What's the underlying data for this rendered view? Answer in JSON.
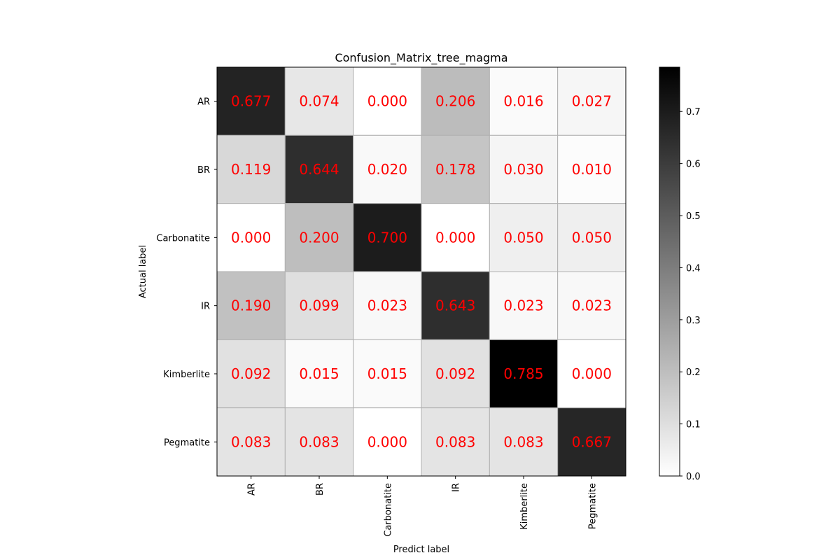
{
  "chart_data": {
    "type": "heatmap",
    "title": "Confusion_Matrix_tree_magma",
    "xlabel": "Predict label",
    "ylabel": "Actual label",
    "x_categories": [
      "AR",
      "BR",
      "Carbonatite",
      "IR",
      "Kimberlite",
      "Pegmatite"
    ],
    "y_categories": [
      "AR",
      "BR",
      "Carbonatite",
      "IR",
      "Kimberlite",
      "Pegmatite"
    ],
    "values": [
      [
        0.677,
        0.074,
        0.0,
        0.206,
        0.016,
        0.027
      ],
      [
        0.119,
        0.644,
        0.02,
        0.178,
        0.03,
        0.01
      ],
      [
        0.0,
        0.2,
        0.7,
        0.0,
        0.05,
        0.05
      ],
      [
        0.19,
        0.099,
        0.023,
        0.643,
        0.023,
        0.023
      ],
      [
        0.092,
        0.015,
        0.015,
        0.092,
        0.785,
        0.0
      ],
      [
        0.083,
        0.083,
        0.0,
        0.083,
        0.083,
        0.667
      ]
    ],
    "value_labels": [
      [
        "0.677",
        "0.074",
        "0.000",
        "0.206",
        "0.016",
        "0.027"
      ],
      [
        "0.119",
        "0.644",
        "0.020",
        "0.178",
        "0.030",
        "0.010"
      ],
      [
        "0.000",
        "0.200",
        "0.700",
        "0.000",
        "0.050",
        "0.050"
      ],
      [
        "0.190",
        "0.099",
        "0.023",
        "0.643",
        "0.023",
        "0.023"
      ],
      [
        "0.092",
        "0.015",
        "0.015",
        "0.092",
        "0.785",
        "0.000"
      ],
      [
        "0.083",
        "0.083",
        "0.000",
        "0.083",
        "0.083",
        "0.667"
      ]
    ],
    "colormap": "Greys",
    "value_range": [
      0.0,
      0.785
    ],
    "colorbar_ticks": [
      0.0,
      0.1,
      0.2,
      0.3,
      0.4,
      0.5,
      0.6,
      0.7
    ],
    "colorbar_tick_labels": [
      "0.0",
      "0.1",
      "0.2",
      "0.3",
      "0.4",
      "0.5",
      "0.6",
      "0.7"
    ],
    "cell_text_color": "#ff0000",
    "grid": true,
    "grid_color": "#b0b0b0",
    "colorbar_placement": "right"
  }
}
